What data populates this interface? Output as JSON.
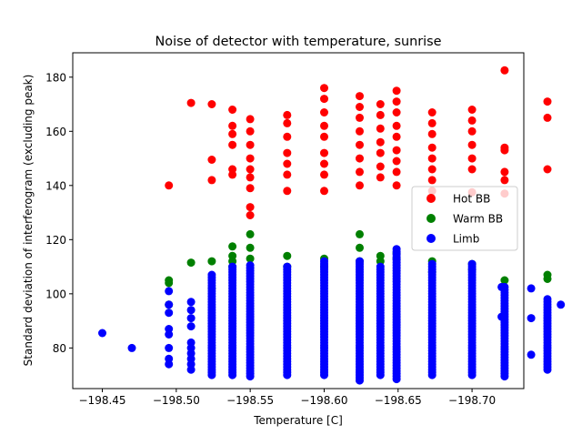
{
  "chart_data": {
    "type": "scatter",
    "title": "Noise of detector with temperature, sunrise",
    "xlabel": "Temperature [C]",
    "ylabel": "Standard deviation of interferogram (excluding peak)",
    "xlim": [
      -198.43,
      -198.735
    ],
    "ylim": [
      65,
      189
    ],
    "x_ticks": [
      -198.45,
      -198.5,
      -198.55,
      -198.6,
      -198.65,
      -198.7
    ],
    "x_tick_labels": [
      "−198.45",
      "−198.50",
      "−198.55",
      "−198.60",
      "−198.65",
      "−198.70"
    ],
    "y_ticks": [
      80,
      100,
      120,
      140,
      160,
      180
    ],
    "y_tick_labels": [
      "80",
      "100",
      "120",
      "140",
      "160",
      "180"
    ],
    "grid": false,
    "legend": {
      "placement": "center-right"
    },
    "series": [
      {
        "name": "Hot BB",
        "color": "#ff0000",
        "points": [
          [
            -198.495,
            140
          ],
          [
            -198.51,
            170.5
          ],
          [
            -198.524,
            170
          ],
          [
            -198.524,
            149.5
          ],
          [
            -198.524,
            142
          ],
          [
            -198.538,
            168
          ],
          [
            -198.538,
            162
          ],
          [
            -198.538,
            159
          ],
          [
            -198.538,
            155
          ],
          [
            -198.538,
            146
          ],
          [
            -198.538,
            144
          ],
          [
            -198.55,
            164.5
          ],
          [
            -198.55,
            160
          ],
          [
            -198.55,
            155
          ],
          [
            -198.55,
            150
          ],
          [
            -198.55,
            146
          ],
          [
            -198.55,
            143
          ],
          [
            -198.55,
            139
          ],
          [
            -198.55,
            132
          ],
          [
            -198.55,
            129
          ],
          [
            -198.575,
            166
          ],
          [
            -198.575,
            163
          ],
          [
            -198.575,
            158
          ],
          [
            -198.575,
            152
          ],
          [
            -198.575,
            148
          ],
          [
            -198.575,
            144
          ],
          [
            -198.575,
            138
          ],
          [
            -198.6,
            176
          ],
          [
            -198.6,
            172
          ],
          [
            -198.6,
            167
          ],
          [
            -198.6,
            162
          ],
          [
            -198.6,
            158
          ],
          [
            -198.6,
            152
          ],
          [
            -198.6,
            148
          ],
          [
            -198.6,
            144
          ],
          [
            -198.6,
            138
          ],
          [
            -198.624,
            173
          ],
          [
            -198.624,
            169
          ],
          [
            -198.624,
            165
          ],
          [
            -198.624,
            160
          ],
          [
            -198.624,
            155
          ],
          [
            -198.624,
            150
          ],
          [
            -198.624,
            145
          ],
          [
            -198.624,
            140
          ],
          [
            -198.638,
            170
          ],
          [
            -198.638,
            166
          ],
          [
            -198.638,
            161
          ],
          [
            -198.638,
            156
          ],
          [
            -198.638,
            152
          ],
          [
            -198.638,
            147
          ],
          [
            -198.638,
            143
          ],
          [
            -198.649,
            175
          ],
          [
            -198.649,
            171
          ],
          [
            -198.649,
            167
          ],
          [
            -198.649,
            162
          ],
          [
            -198.649,
            158
          ],
          [
            -198.649,
            153
          ],
          [
            -198.649,
            149
          ],
          [
            -198.649,
            145
          ],
          [
            -198.649,
            140
          ],
          [
            -198.673,
            167
          ],
          [
            -198.673,
            163
          ],
          [
            -198.673,
            159
          ],
          [
            -198.673,
            154
          ],
          [
            -198.673,
            150
          ],
          [
            -198.673,
            146
          ],
          [
            -198.673,
            142
          ],
          [
            -198.673,
            138
          ],
          [
            -198.7,
            168
          ],
          [
            -198.7,
            164
          ],
          [
            -198.7,
            160
          ],
          [
            -198.7,
            155
          ],
          [
            -198.7,
            150
          ],
          [
            -198.7,
            146
          ],
          [
            -198.7,
            137.5
          ],
          [
            -198.722,
            182.5
          ],
          [
            -198.722,
            154
          ],
          [
            -198.722,
            153
          ],
          [
            -198.722,
            145
          ],
          [
            -198.722,
            142
          ],
          [
            -198.722,
            137
          ],
          [
            -198.751,
            171
          ],
          [
            -198.751,
            165
          ],
          [
            -198.751,
            146
          ]
        ]
      },
      {
        "name": "Warm BB",
        "color": "#008000",
        "points": [
          [
            -198.495,
            105
          ],
          [
            -198.495,
            104
          ],
          [
            -198.495,
            96
          ],
          [
            -198.51,
            111.5
          ],
          [
            -198.524,
            112
          ],
          [
            -198.524,
            102
          ],
          [
            -198.538,
            117.5
          ],
          [
            -198.538,
            114
          ],
          [
            -198.538,
            112
          ],
          [
            -198.538,
            110
          ],
          [
            -198.55,
            122
          ],
          [
            -198.55,
            117
          ],
          [
            -198.55,
            113
          ],
          [
            -198.575,
            114
          ],
          [
            -198.575,
            110
          ],
          [
            -198.6,
            113
          ],
          [
            -198.6,
            110
          ],
          [
            -198.624,
            122
          ],
          [
            -198.624,
            117
          ],
          [
            -198.624,
            112
          ],
          [
            -198.638,
            114
          ],
          [
            -198.638,
            112
          ],
          [
            -198.649,
            115
          ],
          [
            -198.649,
            113
          ],
          [
            -198.673,
            112
          ],
          [
            -198.673,
            108
          ],
          [
            -198.7,
            111
          ],
          [
            -198.7,
            109
          ],
          [
            -198.722,
            105
          ],
          [
            -198.751,
            107
          ],
          [
            -198.751,
            105.5
          ]
        ]
      },
      {
        "name": "Limb",
        "color": "#0000ff",
        "points": [
          [
            -198.45,
            85.5
          ],
          [
            -198.47,
            80
          ],
          [
            -198.495,
            101
          ],
          [
            -198.495,
            96
          ],
          [
            -198.495,
            93
          ],
          [
            -198.495,
            87
          ],
          [
            -198.495,
            85
          ],
          [
            -198.495,
            80
          ],
          [
            -198.495,
            76
          ],
          [
            -198.495,
            74
          ],
          [
            -198.51,
            97
          ],
          [
            -198.51,
            94
          ],
          [
            -198.51,
            91
          ],
          [
            -198.51,
            88
          ],
          [
            -198.51,
            82
          ],
          [
            -198.51,
            80
          ],
          [
            -198.51,
            78
          ],
          [
            -198.51,
            76
          ],
          [
            -198.51,
            74
          ],
          [
            -198.51,
            72
          ],
          [
            -198.72,
            102.5
          ],
          [
            -198.72,
            91.5
          ],
          [
            -198.74,
            102
          ],
          [
            -198.74,
            91
          ],
          [
            -198.74,
            77.5
          ],
          [
            -198.76,
            96
          ]
        ],
        "columns": [
          {
            "x": -198.524,
            "y_range": [
              70,
              107
            ]
          },
          {
            "x": -198.538,
            "y_range": [
              70,
              110
            ]
          },
          {
            "x": -198.55,
            "y_range": [
              69.5,
              110.5
            ]
          },
          {
            "x": -198.575,
            "y_range": [
              70,
              110
            ]
          },
          {
            "x": -198.6,
            "y_range": [
              70,
              112.5
            ]
          },
          {
            "x": -198.624,
            "y_range": [
              68,
              112
            ]
          },
          {
            "x": -198.638,
            "y_range": [
              70,
              110
            ]
          },
          {
            "x": -198.649,
            "y_range": [
              68.5,
              116.5
            ]
          },
          {
            "x": -198.673,
            "y_range": [
              70,
              111.5
            ]
          },
          {
            "x": -198.7,
            "y_range": [
              70,
              111
            ]
          },
          {
            "x": -198.722,
            "y_range": [
              69.5,
              103
            ]
          },
          {
            "x": -198.751,
            "y_range": [
              72,
              98
            ]
          }
        ]
      }
    ]
  }
}
